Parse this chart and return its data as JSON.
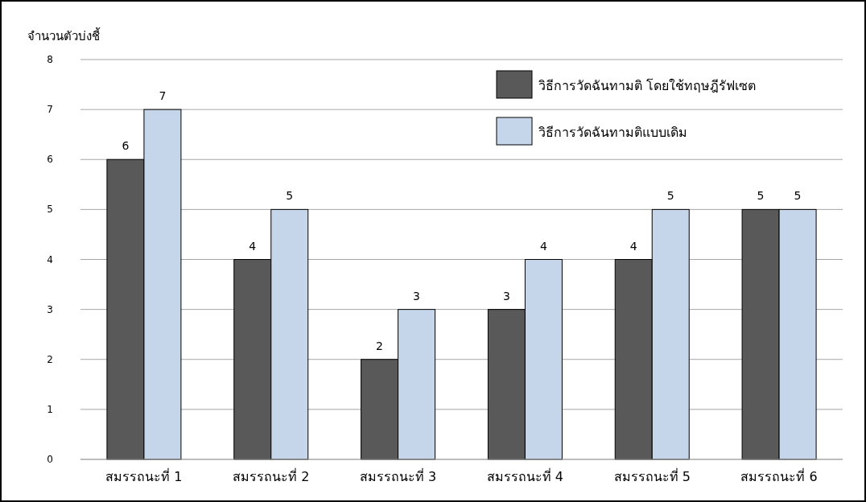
{
  "chart_data": {
    "type": "bar",
    "ylabel": "จำนวนตัวบ่งชี้",
    "categories": [
      "สมรรถนะที่ 1",
      "สมรรถนะที่ 2",
      "สมรรถนะที่ 3",
      "สมรรถนะที่ 4",
      "สมรรถนะที่ 5",
      "สมรรถนะที่ 6"
    ],
    "series": [
      {
        "name": "วิธีการวัดฉันทามติ โดยใช้ทฤษฎีรัฟเซต",
        "color": "#595959",
        "values": [
          6,
          4,
          2,
          3,
          4,
          5
        ]
      },
      {
        "name": "วิธีการวัดฉันทามติแบบเดิม",
        "color": "#c5d5ea",
        "values": [
          7,
          5,
          3,
          4,
          5,
          5
        ]
      }
    ],
    "ylim": [
      0,
      8
    ],
    "yticks": [
      0,
      1,
      2,
      3,
      4,
      5,
      6,
      7,
      8
    ],
    "grid": "y",
    "legend": "top right",
    "data_labels": true
  }
}
